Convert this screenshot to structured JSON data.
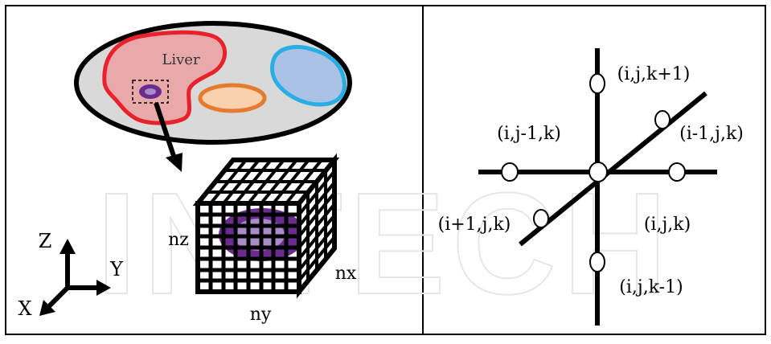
{
  "left_panel": {
    "organ_label": "Liver",
    "axes": {
      "z": "Z",
      "y": "Y",
      "x": "X"
    },
    "grid_dims": {
      "nz": "nz",
      "nx": "nx",
      "ny": "ny"
    }
  },
  "right_panel": {
    "nodes": {
      "top": "(i,j,k+1)",
      "upper_left": "(i,j-1,k)",
      "upper_right": "(i-1,j,k)",
      "lower_left": "(i+1,j,k)",
      "lower_right": "(i,j,k)",
      "bottom": "(i,j,k-1)"
    }
  },
  "watermark": "INTECH",
  "colors": {
    "liver_outline": "#e8212a",
    "liver_fill": "#e8a9ab",
    "blue_outline": "#29aee3",
    "blue_fill": "#a9c2e6",
    "orange_outline": "#e67a2e",
    "orange_fill": "#fbd0ad",
    "body_fill": "#d9d9d9",
    "tumor": "#6a2c8e",
    "tumor_light": "#a78cc7"
  }
}
